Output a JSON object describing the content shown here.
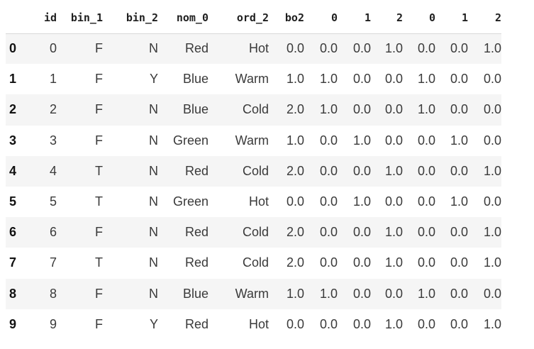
{
  "table": {
    "columns": [
      "id",
      "bin_1",
      "bin_2",
      "nom_0",
      "ord_2",
      "bo2",
      "0",
      "1",
      "2",
      "0",
      "1",
      "2"
    ],
    "index": [
      "0",
      "1",
      "2",
      "3",
      "4",
      "5",
      "6",
      "7",
      "8",
      "9"
    ],
    "rows": [
      [
        "0",
        "F",
        "N",
        "Red",
        "Hot",
        "0.0",
        "0.0",
        "0.0",
        "1.0",
        "0.0",
        "0.0",
        "1.0"
      ],
      [
        "1",
        "F",
        "Y",
        "Blue",
        "Warm",
        "1.0",
        "1.0",
        "0.0",
        "0.0",
        "1.0",
        "0.0",
        "0.0"
      ],
      [
        "2",
        "F",
        "N",
        "Blue",
        "Cold",
        "2.0",
        "1.0",
        "0.0",
        "0.0",
        "1.0",
        "0.0",
        "0.0"
      ],
      [
        "3",
        "F",
        "N",
        "Green",
        "Warm",
        "1.0",
        "0.0",
        "1.0",
        "0.0",
        "0.0",
        "1.0",
        "0.0"
      ],
      [
        "4",
        "T",
        "N",
        "Red",
        "Cold",
        "2.0",
        "0.0",
        "0.0",
        "1.0",
        "0.0",
        "0.0",
        "1.0"
      ],
      [
        "5",
        "T",
        "N",
        "Green",
        "Hot",
        "0.0",
        "0.0",
        "1.0",
        "0.0",
        "0.0",
        "1.0",
        "0.0"
      ],
      [
        "6",
        "F",
        "N",
        "Red",
        "Cold",
        "2.0",
        "0.0",
        "0.0",
        "1.0",
        "0.0",
        "0.0",
        "1.0"
      ],
      [
        "7",
        "T",
        "N",
        "Red",
        "Cold",
        "2.0",
        "0.0",
        "0.0",
        "1.0",
        "0.0",
        "0.0",
        "1.0"
      ],
      [
        "8",
        "F",
        "N",
        "Blue",
        "Warm",
        "1.0",
        "1.0",
        "0.0",
        "0.0",
        "1.0",
        "0.0",
        "0.0"
      ],
      [
        "9",
        "F",
        "Y",
        "Red",
        "Hot",
        "0.0",
        "0.0",
        "0.0",
        "1.0",
        "0.0",
        "0.0",
        "1.0"
      ]
    ]
  },
  "colors": {
    "stripe": "#f5f5f5",
    "header_rule": "#d9d9d9",
    "text": "#3a3a3a"
  }
}
